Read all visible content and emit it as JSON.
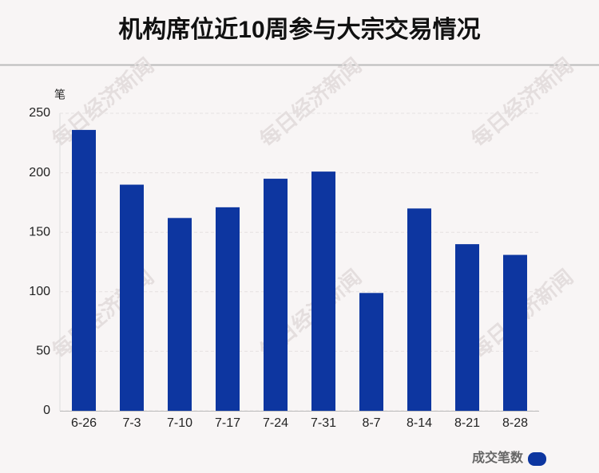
{
  "chart_data": {
    "type": "bar",
    "title": "机构席位近10周参与大宗交易情况",
    "y_label": "笔",
    "watermark": "每日经济新闻",
    "categories": [
      "6-26",
      "7-3",
      "7-10",
      "7-17",
      "7-24",
      "7-31",
      "8-7",
      "8-14",
      "8-21",
      "8-28"
    ],
    "series": [
      {
        "name": "成交笔数",
        "color": "#0d36a0",
        "values": [
          236,
          190,
          162,
          171,
          195,
          201,
          99,
          170,
          140,
          131
        ]
      }
    ],
    "ylim": [
      0,
      250
    ],
    "yticks": [
      0,
      50,
      100,
      150,
      200,
      250
    ],
    "grid": true,
    "legend": "bottom-right"
  }
}
